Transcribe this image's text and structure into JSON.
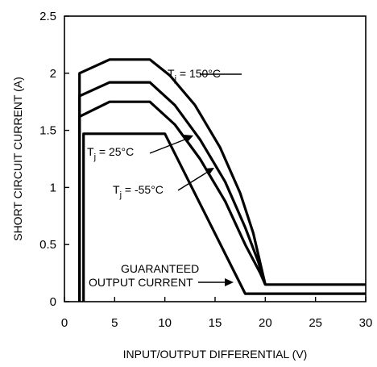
{
  "chart_data": {
    "type": "line",
    "xlabel": "INPUT/OUTPUT DIFFERENTIAL (V)",
    "ylabel": "SHORT CIRCUIT CURRENT (A)",
    "xlim": [
      0,
      30
    ],
    "ylim": [
      0,
      2.5
    ],
    "xticks": [
      "0",
      "5",
      "10",
      "15",
      "20",
      "25",
      "30"
    ],
    "yticks": [
      "0",
      "0.5",
      "1",
      "1.5",
      "2",
      "2.5"
    ],
    "grid": false,
    "series": [
      {
        "name": "Tj = 150°C",
        "x": [
          1.5,
          1.5,
          4.5,
          8.5,
          10.5,
          13,
          15.5,
          17.5,
          18.8,
          19.6,
          20,
          20,
          30
        ],
        "y": [
          0,
          2.0,
          2.12,
          2.12,
          1.98,
          1.72,
          1.35,
          0.95,
          0.6,
          0.3,
          0.15,
          0.15,
          0.15
        ]
      },
      {
        "name": "Tj = 25°C",
        "x": [
          1.5,
          1.5,
          4.5,
          8.5,
          11,
          13.5,
          16,
          18,
          19.3,
          20,
          20
        ],
        "y": [
          0,
          1.8,
          1.92,
          1.92,
          1.72,
          1.42,
          1.05,
          0.65,
          0.35,
          0.15,
          0.15
        ]
      },
      {
        "name": "Tj = -55°C",
        "x": [
          1.5,
          1.5,
          4.5,
          8.5,
          11,
          13.5,
          16,
          18,
          19.5,
          20,
          20
        ],
        "y": [
          0,
          1.62,
          1.75,
          1.75,
          1.55,
          1.25,
          0.88,
          0.5,
          0.25,
          0.15,
          0.15
        ]
      },
      {
        "name": "GUARANTEED OUTPUT CURRENT",
        "x": [
          1.9,
          1.9,
          10,
          18,
          30
        ],
        "y": [
          0,
          1.47,
          1.47,
          0.07,
          0.07
        ]
      }
    ],
    "annotations": [
      {
        "prefix": "T",
        "sub": "j",
        "rest": " = 150°C"
      },
      {
        "prefix": "T",
        "sub": "j",
        "rest": " = 25°C"
      },
      {
        "prefix": "T",
        "sub": "j",
        "rest": " = -55°C"
      },
      {
        "line1": "GUARANTEED",
        "line2": "OUTPUT CURRENT"
      }
    ]
  }
}
